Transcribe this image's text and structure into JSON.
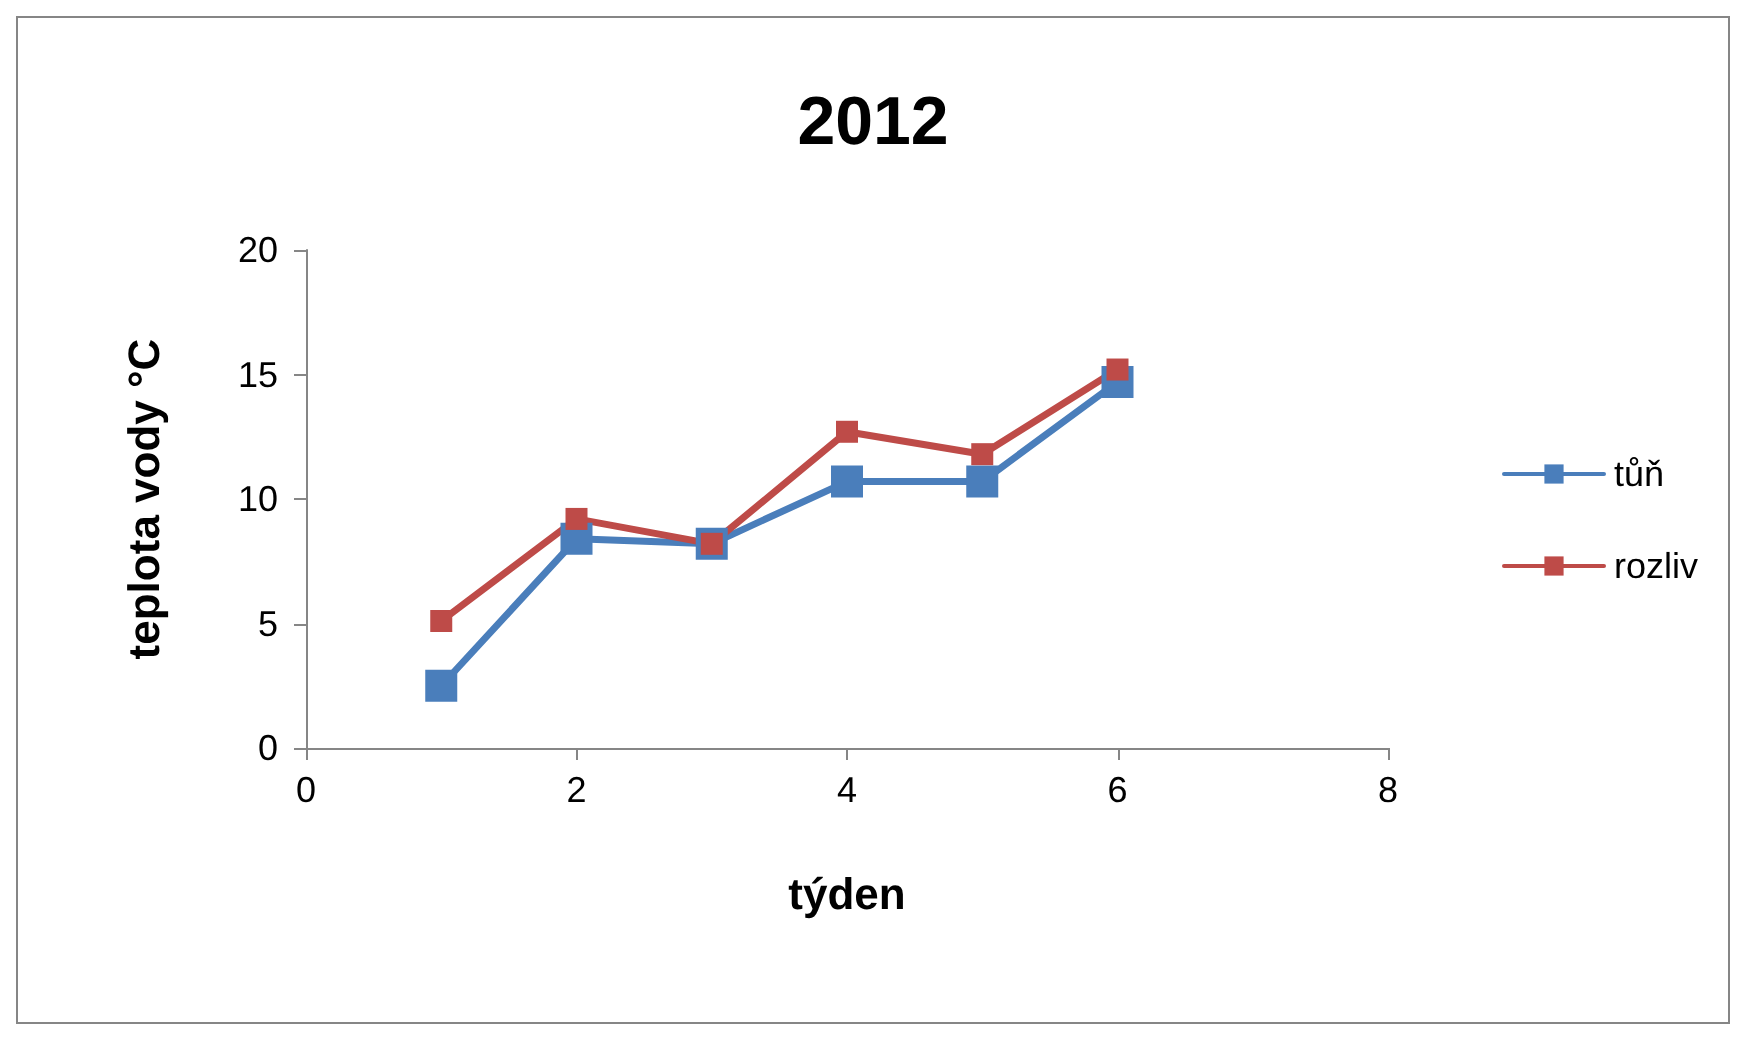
{
  "chart_data": {
    "type": "line",
    "title": "2012",
    "xlabel": "týden",
    "ylabel": "teplota vody °C",
    "x": [
      1,
      2,
      3,
      4,
      5,
      6
    ],
    "series": [
      {
        "name": "tůň",
        "color": "#4a7ebb",
        "values": [
          2.5,
          8.4,
          8.2,
          10.7,
          10.7,
          14.7
        ]
      },
      {
        "name": "rozliv",
        "color": "#be4b48",
        "values": [
          5.1,
          9.2,
          8.2,
          12.7,
          11.8,
          15.2
        ]
      }
    ],
    "xlim": [
      0,
      8
    ],
    "xticks": [
      0,
      2,
      4,
      6,
      8
    ],
    "ylim": [
      0,
      20
    ],
    "yticks": [
      0,
      5,
      10,
      15,
      20
    ],
    "grid": false,
    "legend": "right",
    "marker": "square",
    "line_style": "solid"
  }
}
